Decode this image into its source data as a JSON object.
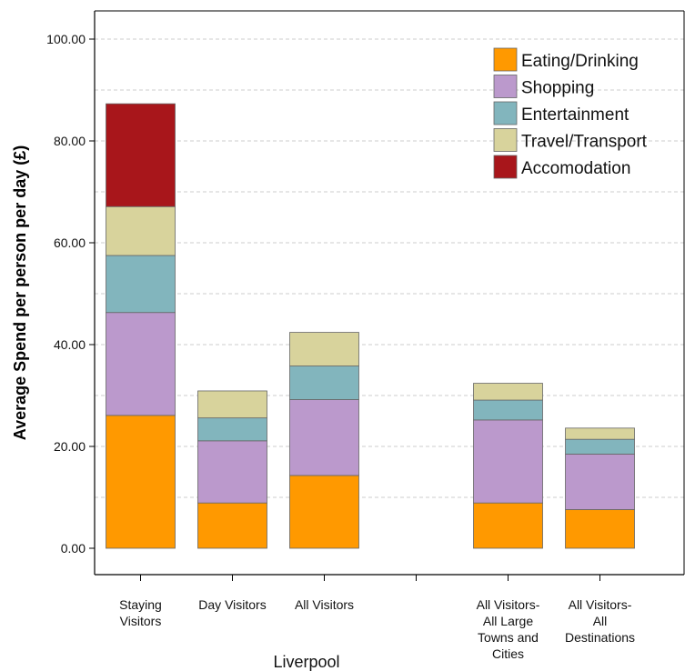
{
  "chart_data": {
    "type": "bar",
    "stacked": true,
    "title": "",
    "xlabel": "Liverpool",
    "ylabel": "Average Spend per person per day (£)",
    "ylim": [
      0,
      105
    ],
    "yticks": [
      "0.00",
      "20.00",
      "40.00",
      "60.00",
      "80.00",
      "100.00"
    ],
    "grid": true,
    "legend_position": "top-right",
    "categories": [
      {
        "label": [
          "Staying",
          "Visitors"
        ]
      },
      {
        "label": [
          "Day Visitors"
        ]
      },
      {
        "label": [
          "All Visitors"
        ]
      },
      {
        "label": []
      },
      {
        "label": [
          "All Visitors-",
          "All Large",
          "Towns and",
          "Cities"
        ]
      },
      {
        "label": [
          "All Visitors-",
          "All",
          "Destinations"
        ]
      }
    ],
    "series": [
      {
        "name": "Eating/Drinking",
        "color": "#ff9900",
        "values": [
          26.1,
          8.9,
          14.3,
          null,
          8.9,
          7.6
        ]
      },
      {
        "name": "Shopping",
        "color": "#bb99cc",
        "values": [
          20.2,
          12.2,
          14.9,
          null,
          16.3,
          10.9
        ]
      },
      {
        "name": "Entertainment",
        "color": "#82b5bd",
        "values": [
          11.2,
          4.5,
          6.6,
          null,
          3.9,
          2.9
        ]
      },
      {
        "name": "Travel/Transport",
        "color": "#d8d39c",
        "values": [
          9.6,
          5.3,
          6.6,
          null,
          3.3,
          2.2
        ]
      },
      {
        "name": "Accomodation",
        "color": "#a8161b",
        "values": [
          20.2,
          0,
          0,
          null,
          0,
          0
        ]
      }
    ]
  }
}
